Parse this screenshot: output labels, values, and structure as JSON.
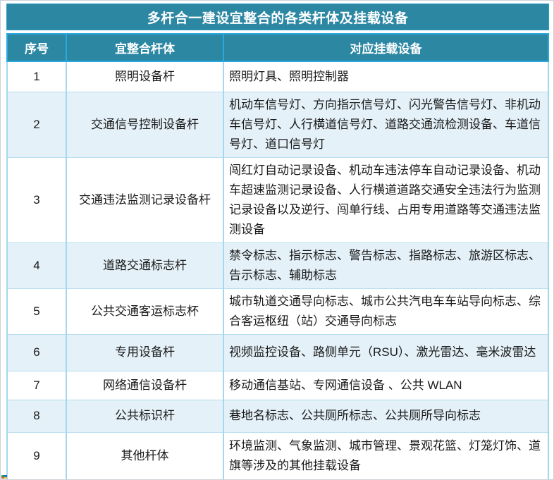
{
  "title": "多杆合一建设宜整合的各类杆体及挂载设备",
  "columns": [
    "序号",
    "宜整合杆体",
    "对应挂载设备"
  ],
  "rows": [
    {
      "no": "1",
      "pole": "照明设备杆",
      "devices": "照明灯具、照明控制器"
    },
    {
      "no": "2",
      "pole": "交通信号控制设备杆",
      "devices": "机动车信号灯、方向指示信号灯、闪光警告信号灯、非机动车信号灯、人行横道信号灯、道路交通流检测设备、车道信号灯、道口信号灯"
    },
    {
      "no": "3",
      "pole": "交通违法监测记录设备杆",
      "devices": "闯红灯自动记录设备、机动车违法停车自动记录设备、机动车超速监测记录设备、人行横道道路交通安全违法行为监测记录设备以及逆行、闯单行线、占用专用道路等交通违法监测设备"
    },
    {
      "no": "4",
      "pole": "道路交通标志杆",
      "devices": "禁令标志、指示标志、警告标志、指路标志、旅游区标志、告示标志、辅助标志"
    },
    {
      "no": "5",
      "pole": "公共交通客运标志杯",
      "devices": "城市轨道交通导向标志、城市公共汽电车车站导向标志、综合客运枢纽（站）交通导向标志"
    },
    {
      "no": "6",
      "pole": "专用设备杆",
      "devices": "视频监控设备、路侧单元（RSU）、激光雷达、毫米波雷达"
    },
    {
      "no": "7",
      "pole": "网络通信设备杆",
      "devices": "移动通信基站、专网通信设备 、公共 WLAN"
    },
    {
      "no": "8",
      "pole": "公共标识杆",
      "devices": "巷地名标志、公共厕所标志、公共厕所导向标志"
    },
    {
      "no": "9",
      "pole": "其他杆体",
      "devices": "环境监测、气象监测、城市管理、景观花篮、灯笼灯饰、道旗等涉及的其他挂载设备"
    }
  ],
  "colors": {
    "header_teal": "#2c87a3",
    "header_divider_cyan": "#29a9e0",
    "row_alt_blue": "#e4f1f8",
    "body_border_blue": "#a5d8ec",
    "title_text": "#ffffff",
    "body_text": "#1a1a1a"
  }
}
